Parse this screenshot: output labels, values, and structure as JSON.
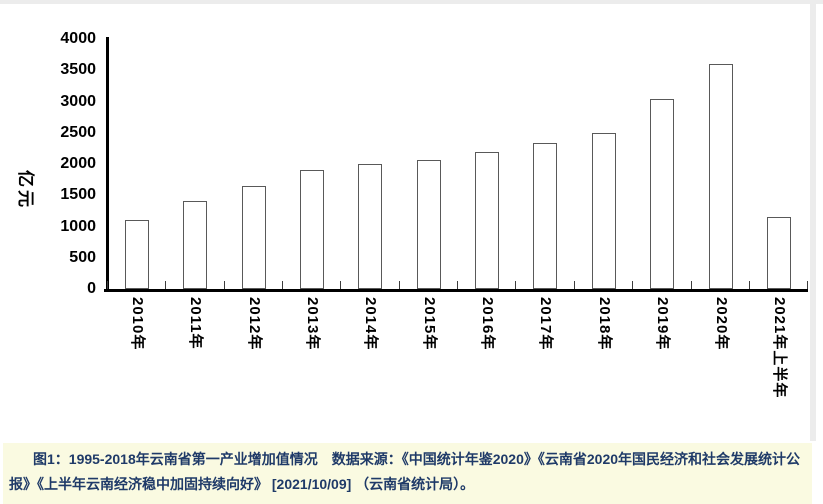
{
  "page": {
    "background_color": "#ffffff",
    "border_color": "#ececec"
  },
  "chart_data": {
    "type": "bar",
    "title": "",
    "categories": [
      "2010年",
      "2011年",
      "2012年",
      "2013年",
      "2014年",
      "2015年",
      "2016年",
      "2017年",
      "2018年",
      "2019年",
      "2020年",
      "2021年上半年"
    ],
    "values": [
      1100,
      1410,
      1650,
      1900,
      2000,
      2060,
      2200,
      2340,
      2500,
      3040,
      3600,
      1150
    ],
    "xlabel": "",
    "ylabel": "亿元",
    "ylim": [
      0,
      4000
    ],
    "ytick_step": 500,
    "ytick_labels": [
      "0",
      "500",
      "1000",
      "1500",
      "2000",
      "2500",
      "3000",
      "3500",
      "4000"
    ],
    "grid": false,
    "legend": false,
    "bar_fill_color": "#ffffff",
    "bar_border_color": "#595959",
    "axis_color": "#000000",
    "x_labels_rotated_degrees": 90
  },
  "caption": {
    "line1": "图1：1995-2018年云南省第一产业增加值情况　数据来源：《中国统计年鉴2020》《云南省2020年国民经济和社会发展统计公",
    "line2": "报》《上半年云南经济稳中加固持续向好》 [2021/10/09] （云南省统计局）。",
    "background_color": "#fafae1",
    "text_color": "#1f3a68"
  }
}
